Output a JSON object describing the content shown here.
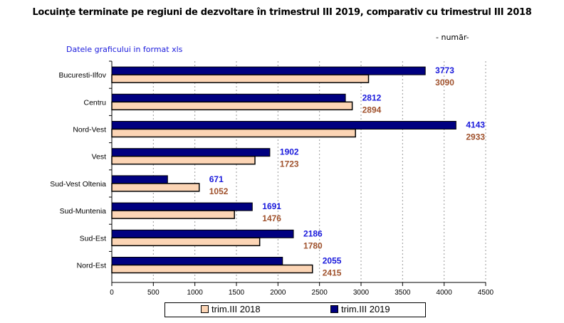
{
  "header": {
    "title": "Locuinţe terminate pe regiuni de dezvoltare în trimestrul III 2019, comparativ cu trimestrul III 2018",
    "unit": "- număr-",
    "data_link": "Datele graficului in format xls"
  },
  "colors": {
    "s2018": "#fcd5b5",
    "s2019": "#000080",
    "label2018": "#a0522d",
    "label2019": "#1a1adc"
  },
  "chart_data": {
    "type": "bar",
    "orientation": "horizontal",
    "title": "Locuinţe terminate pe regiuni de dezvoltare în trimestrul III 2019, comparativ cu trimestrul III 2018",
    "categories": [
      "Bucuresti-Ilfov",
      "Centru",
      "Nord-Vest",
      "Vest",
      "Sud-Vest Oltenia",
      "Sud-Muntenia",
      "Sud-Est",
      "Nord-Est"
    ],
    "series": [
      {
        "name": "trim.III 2019",
        "values": [
          3773,
          2812,
          4143,
          1902,
          671,
          1691,
          2186,
          2055
        ]
      },
      {
        "name": "trim.III 2018",
        "values": [
          3090,
          2894,
          2933,
          1723,
          1052,
          1476,
          1780,
          2415
        ]
      }
    ],
    "xlim": [
      0,
      4500
    ],
    "xticks": [
      "0",
      "500",
      "1000",
      "1500",
      "2000",
      "2500",
      "3000",
      "3500",
      "4000",
      "4500"
    ],
    "grid": true,
    "legend": "bottom"
  }
}
